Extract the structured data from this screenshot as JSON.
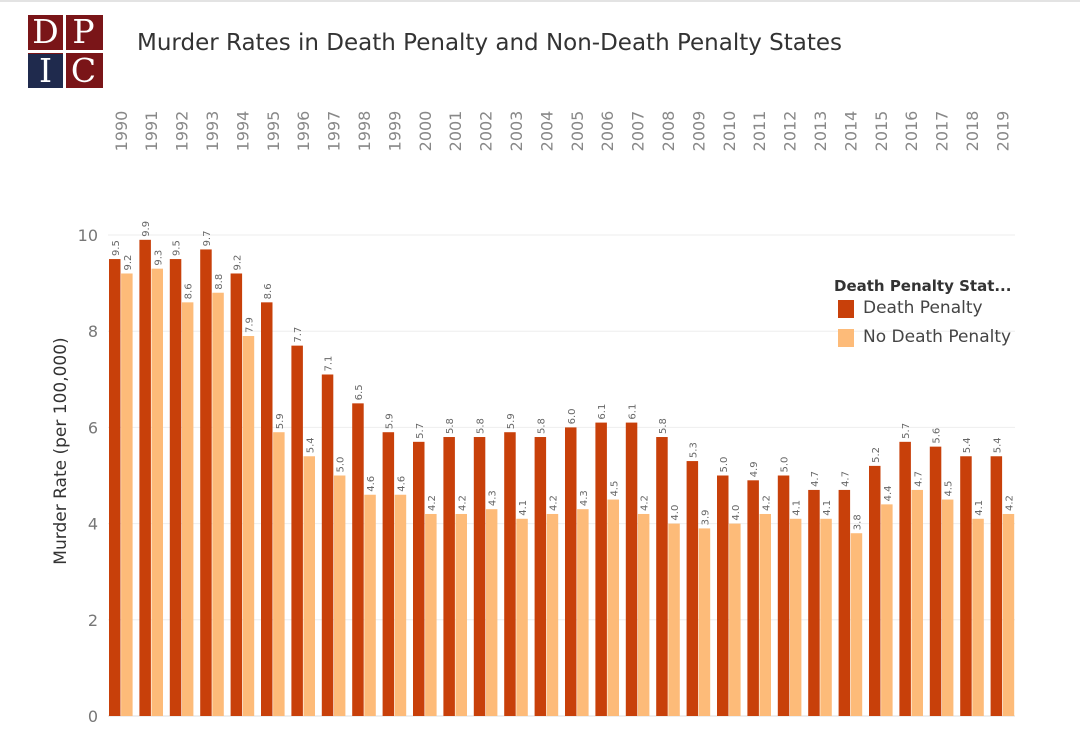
{
  "logo": {
    "letters": [
      "D",
      "P",
      "I",
      "C"
    ]
  },
  "chart_data": {
    "type": "bar",
    "title": "Murder Rates in Death Penalty and Non-Death Penalty States",
    "xlabel": "",
    "ylabel": "Murder Rate (per 100,000)",
    "ylim": [
      0,
      10
    ],
    "yticks": [
      0,
      2,
      4,
      6,
      8,
      10
    ],
    "grid": true,
    "legend": {
      "title": "Death Penalty Stat...",
      "placement": "right"
    },
    "categories": [
      "1990",
      "1991",
      "1992",
      "1993",
      "1994",
      "1995",
      "1996",
      "1997",
      "1998",
      "1999",
      "2000",
      "2001",
      "2002",
      "2003",
      "2004",
      "2005",
      "2006",
      "2007",
      "2008",
      "2009",
      "2010",
      "2011",
      "2012",
      "2013",
      "2014",
      "2015",
      "2016",
      "2017",
      "2018",
      "2019"
    ],
    "series": [
      {
        "name": "Death Penalty",
        "color": "#c8400a",
        "values": [
          9.5,
          9.9,
          9.5,
          9.7,
          9.2,
          8.6,
          7.7,
          7.1,
          6.5,
          5.9,
          5.7,
          5.8,
          5.8,
          5.9,
          5.8,
          6.0,
          6.1,
          6.1,
          5.8,
          5.3,
          5.0,
          4.9,
          5.0,
          4.7,
          4.7,
          5.2,
          5.7,
          5.6,
          5.4,
          5.4
        ]
      },
      {
        "name": "No Death Penalty",
        "color": "#fdbb79",
        "values": [
          9.2,
          9.3,
          8.6,
          8.8,
          7.9,
          5.9,
          5.4,
          5.0,
          4.6,
          4.6,
          4.2,
          4.2,
          4.3,
          4.1,
          4.2,
          4.3,
          4.5,
          4.2,
          4.0,
          3.9,
          4.0,
          4.2,
          4.1,
          4.1,
          3.8,
          4.4,
          4.7,
          4.5,
          4.1,
          4.2
        ]
      }
    ]
  }
}
